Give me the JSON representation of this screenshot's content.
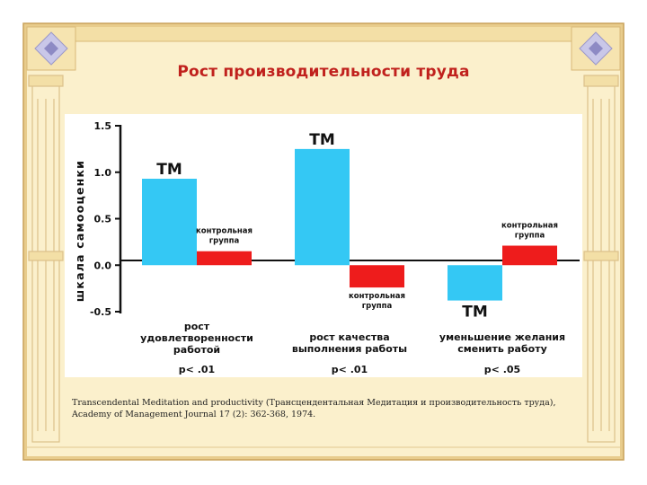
{
  "slide": {
    "title": "Рост производительности труда",
    "citation": "Transcendental Meditation and productivity (Трансцендентальная Медитация и производительность труда), Academy of Management Journal 17 (2): 362-368, 1974."
  },
  "colors": {
    "tm_bar": "#34c8f4",
    "control_bar": "#ee1c1c",
    "title": "#c0211d",
    "parchment": "#fbf0cc",
    "border": "#e8cc8c"
  },
  "chart_data": {
    "type": "bar",
    "ylabel": "шкала самооценки",
    "ylim": [
      -0.5,
      1.5
    ],
    "yticks": [
      "1.5",
      "1.0",
      "0.5",
      "0.0",
      "-0.5"
    ],
    "categories": [
      {
        "lines": [
          "рост",
          "удовлетворенности",
          "работой"
        ],
        "p": "p< .01"
      },
      {
        "lines": [
          "рост качества",
          "выполнения работы"
        ],
        "p": "p< .01"
      },
      {
        "lines": [
          "уменьшение желания",
          "сменить работу"
        ],
        "p": "p< .05"
      }
    ],
    "series": [
      {
        "name": "ТМ",
        "color": "#34c8f4",
        "values": [
          0.93,
          1.25,
          -0.38
        ]
      },
      {
        "name": "контрольная группа",
        "color": "#ee1c1c",
        "values": [
          0.15,
          -0.24,
          0.21
        ]
      }
    ],
    "bar_labels": {
      "tm": "ТМ",
      "control": [
        "контрольная",
        "группа"
      ]
    }
  }
}
